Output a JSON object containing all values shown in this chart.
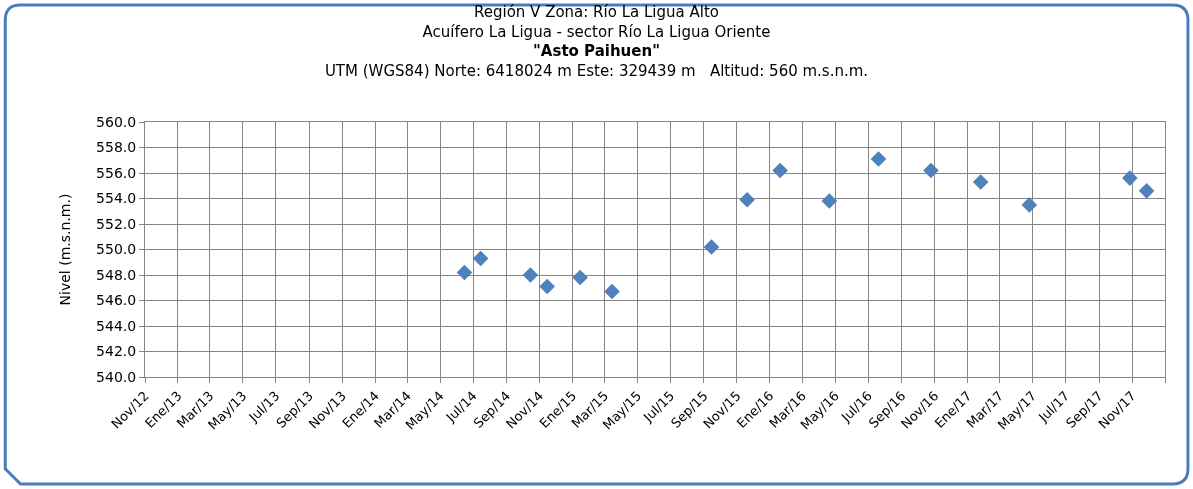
{
  "chart_data": {
    "type": "scatter",
    "title": "Región V Zona: Río La Ligua Alto\nAcuífero La Ligua - sector Río La Ligua Oriente\n\"Asto Paihuen\"\nUTM (WGS84) Norte: 6418024 m Este: 329439 m   Altitud: 560 m.s.n.m.",
    "ylabel": "Nivel (m.s.n.m.)",
    "x": [
      "2014-06-15",
      "2014-07-15",
      "2014-10-15",
      "2014-11-15",
      "2015-01-15",
      "2015-03-15",
      "2015-09-15",
      "2015-11-20",
      "2016-01-20",
      "2016-04-20",
      "2016-07-20",
      "2016-10-25",
      "2017-01-25",
      "2017-04-25",
      "2017-10-28",
      "2017-11-28"
    ],
    "series": [
      {
        "color": "#4f81bd",
        "values": [
          548.2,
          549.3,
          548.0,
          547.1,
          547.8,
          546.7,
          550.2,
          553.9,
          556.2,
          553.8,
          557.1,
          556.2,
          555.3,
          553.5,
          555.6,
          554.6
        ]
      }
    ],
    "marker": "diamond",
    "grid": true,
    "ylim": [
      540,
      560
    ],
    "yticks": [
      {
        "value": 540,
        "label": "540.0"
      },
      {
        "value": 542,
        "label": "542.0"
      },
      {
        "value": 544,
        "label": "544.0"
      },
      {
        "value": 546,
        "label": "546.0"
      },
      {
        "value": 548,
        "label": "548.0"
      },
      {
        "value": 550,
        "label": "550.0"
      },
      {
        "value": 552,
        "label": "552.0"
      },
      {
        "value": 554,
        "label": "554.0"
      },
      {
        "value": 556,
        "label": "556.0"
      },
      {
        "value": 558,
        "label": "558.0"
      },
      {
        "value": 560,
        "label": "560.0"
      }
    ],
    "xlim": [
      "2012-11-01",
      "2018-01-01"
    ],
    "xticks": [
      {
        "value": "2012-11-01",
        "label": "Nov/12"
      },
      {
        "value": "2013-01-01",
        "label": "Ene/13"
      },
      {
        "value": "2013-03-01",
        "label": "Mar/13"
      },
      {
        "value": "2013-05-01",
        "label": "May/13"
      },
      {
        "value": "2013-07-01",
        "label": "Jul/13"
      },
      {
        "value": "2013-09-01",
        "label": "Sep/13"
      },
      {
        "value": "2013-11-01",
        "label": "Nov/13"
      },
      {
        "value": "2014-01-01",
        "label": "Ene/14"
      },
      {
        "value": "2014-03-01",
        "label": "Mar/14"
      },
      {
        "value": "2014-05-01",
        "label": "May/14"
      },
      {
        "value": "2014-07-01",
        "label": "Jul/14"
      },
      {
        "value": "2014-09-01",
        "label": "Sep/14"
      },
      {
        "value": "2014-11-01",
        "label": "Nov/14"
      },
      {
        "value": "2015-01-01",
        "label": "Ene/15"
      },
      {
        "value": "2015-03-01",
        "label": "Mar/15"
      },
      {
        "value": "2015-05-01",
        "label": "May/15"
      },
      {
        "value": "2015-07-01",
        "label": "Jul/15"
      },
      {
        "value": "2015-09-01",
        "label": "Sep/15"
      },
      {
        "value": "2015-11-01",
        "label": "Nov/15"
      },
      {
        "value": "2016-01-01",
        "label": "Ene/16"
      },
      {
        "value": "2016-03-01",
        "label": "Mar/16"
      },
      {
        "value": "2016-05-01",
        "label": "May/16"
      },
      {
        "value": "2016-07-01",
        "label": "Jul/16"
      },
      {
        "value": "2016-09-01",
        "label": "Sep/16"
      },
      {
        "value": "2016-11-01",
        "label": "Nov/16"
      },
      {
        "value": "2017-01-01",
        "label": "Ene/17"
      },
      {
        "value": "2017-03-01",
        "label": "Mar/17"
      },
      {
        "value": "2017-05-01",
        "label": "May/17"
      },
      {
        "value": "2017-07-01",
        "label": "Jul/17"
      },
      {
        "value": "2017-09-01",
        "label": "Sep/17"
      },
      {
        "value": "2017-11-01",
        "label": "Nov/17"
      },
      {
        "value": "2018-01-01",
        "label": null
      }
    ]
  }
}
